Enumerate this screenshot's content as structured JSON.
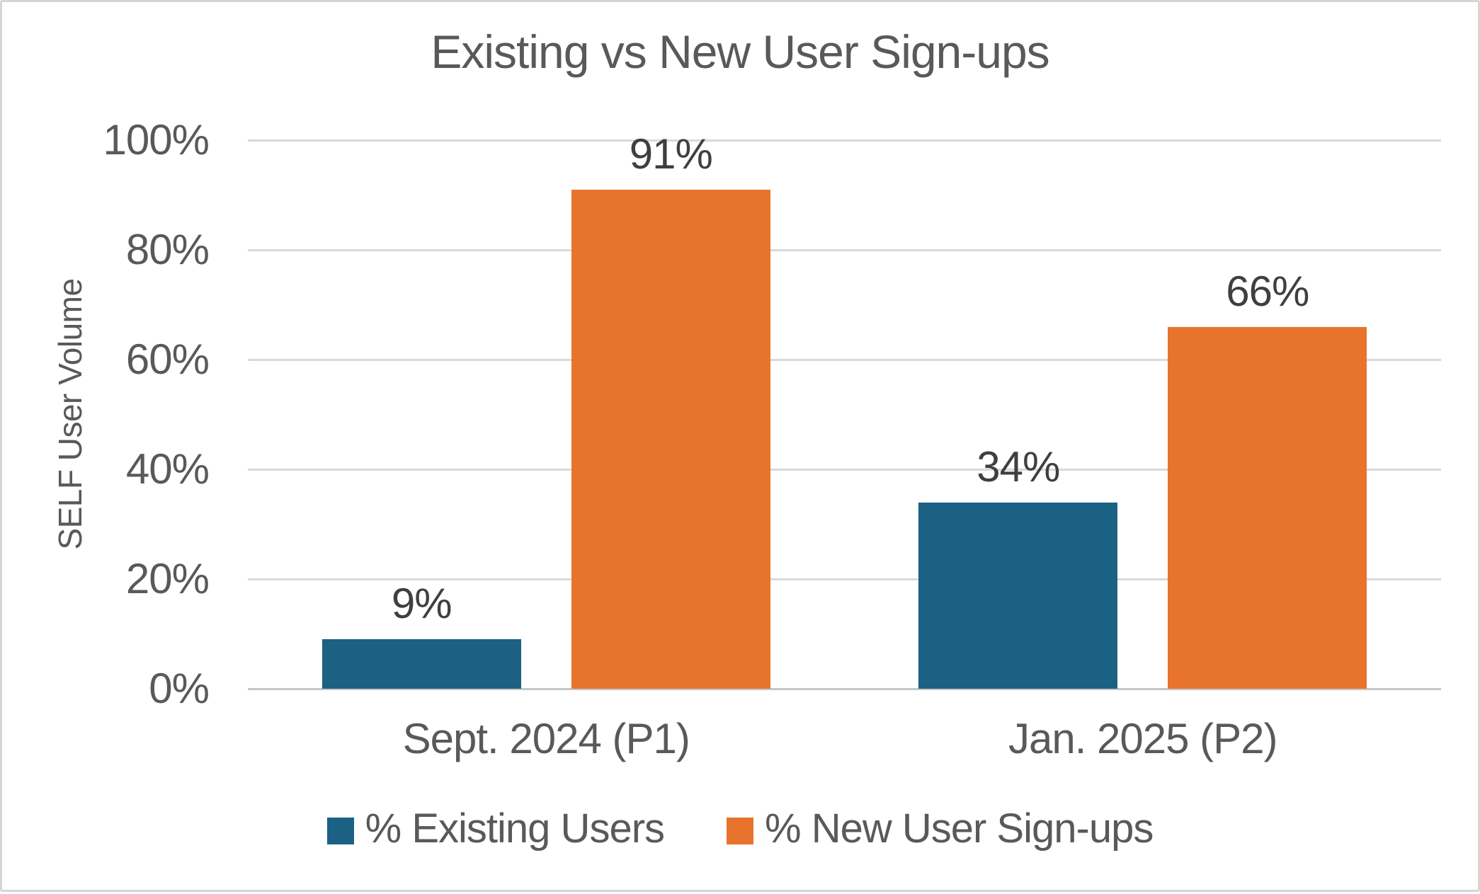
{
  "frame": {
    "background": "#FFFFFF",
    "border_color": "#D5D5D5"
  },
  "chart_data": {
    "type": "bar",
    "title": "Existing vs New User Sign-ups",
    "xlabel": "",
    "ylabel": "SELF User Volume",
    "categories": [
      "Sept. 2024 (P1)",
      "Jan. 2025 (P2)"
    ],
    "series": [
      {
        "name": "% Existing Users",
        "color": "#1B6183",
        "values": [
          9,
          34
        ],
        "data_labels": [
          "9%",
          "34%"
        ]
      },
      {
        "name": "% New User Sign-ups",
        "color": "#E8732D",
        "values": [
          91,
          66
        ],
        "data_labels": [
          "91%",
          "66%"
        ]
      }
    ],
    "ylim": [
      0,
      100
    ],
    "y_ticks": [
      {
        "label": "0%",
        "value": 0
      },
      {
        "label": "20%",
        "value": 20
      },
      {
        "label": "40%",
        "value": 40
      },
      {
        "label": "60%",
        "value": 60
      },
      {
        "label": "80%",
        "value": 80
      },
      {
        "label": "100%",
        "value": 100
      }
    ],
    "grid": true,
    "legend_position": "bottom"
  },
  "colors": {
    "title_text": "#595959",
    "axis_text": "#595959",
    "data_label_text": "#3F3F3F",
    "gridline": "#D9D9D9",
    "axis_line": "#C6C6C6",
    "series_existing_blue": "#1B6183",
    "series_new_orange": "#E8732D"
  }
}
